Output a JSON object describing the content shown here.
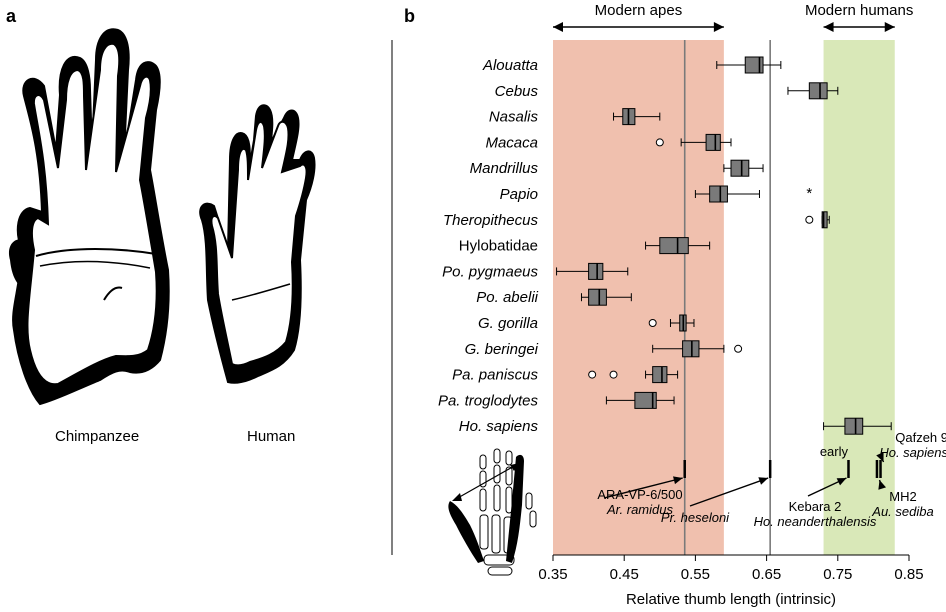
{
  "panel_a": {
    "label": "a",
    "left_caption": "Chimpanzee",
    "right_caption": "Human"
  },
  "chart_data": {
    "type": "boxplot",
    "panel_label": "b",
    "xlabel": "Relative thumb length (intrinsic)",
    "xlim": [
      0.35,
      0.85
    ],
    "xticks": [
      0.35,
      0.45,
      0.55,
      0.65,
      0.75,
      0.85
    ],
    "xtick_labels": [
      "0.35",
      "0.45",
      "0.55",
      "0.65",
      "0.75",
      "0.85"
    ],
    "grid": false,
    "bands": [
      {
        "label": "Modern apes",
        "from": 0.35,
        "to": 0.59,
        "color": "#f0c0ae"
      },
      {
        "label": "Modern humans",
        "from": 0.73,
        "to": 0.83,
        "color": "#d9e8b8"
      }
    ],
    "series": [
      {
        "label": "Alouatta",
        "italic": true,
        "whisker_low": 0.58,
        "q1": 0.62,
        "median": 0.64,
        "q3": 0.645,
        "whisker_high": 0.67,
        "outliers": []
      },
      {
        "label": "Cebus",
        "italic": true,
        "whisker_low": 0.68,
        "q1": 0.71,
        "median": 0.725,
        "q3": 0.735,
        "whisker_high": 0.75,
        "outliers": []
      },
      {
        "label": "Nasalis",
        "italic": true,
        "whisker_low": 0.435,
        "q1": 0.448,
        "median": 0.456,
        "q3": 0.465,
        "whisker_high": 0.5,
        "outliers": []
      },
      {
        "label": "Macaca",
        "italic": true,
        "whisker_low": 0.53,
        "q1": 0.565,
        "median": 0.578,
        "q3": 0.585,
        "whisker_high": 0.6,
        "outliers": [
          0.5
        ]
      },
      {
        "label": "Mandrillus",
        "italic": true,
        "whisker_low": 0.59,
        "q1": 0.6,
        "median": 0.615,
        "q3": 0.625,
        "whisker_high": 0.645,
        "outliers": []
      },
      {
        "label": "Papio",
        "italic": true,
        "whisker_low": 0.55,
        "q1": 0.57,
        "median": 0.585,
        "q3": 0.595,
        "whisker_high": 0.64,
        "outliers": []
      },
      {
        "label": "Theropithecus",
        "italic": true,
        "whisker_low": 0.728,
        "q1": 0.728,
        "median": 0.73,
        "q3": 0.735,
        "whisker_high": 0.738,
        "outliers": [
          0.71
        ]
      },
      {
        "label": "Hylobatidae",
        "italic": false,
        "whisker_low": 0.48,
        "q1": 0.5,
        "median": 0.525,
        "q3": 0.54,
        "whisker_high": 0.57,
        "outliers": []
      },
      {
        "label": "Po. pygmaeus",
        "italic": true,
        "whisker_low": 0.355,
        "q1": 0.4,
        "median": 0.412,
        "q3": 0.42,
        "whisker_high": 0.455,
        "outliers": []
      },
      {
        "label": "Po. abelii",
        "italic": true,
        "whisker_low": 0.39,
        "q1": 0.4,
        "median": 0.415,
        "q3": 0.425,
        "whisker_high": 0.46,
        "outliers": []
      },
      {
        "label": "G. gorilla",
        "italic": true,
        "whisker_low": 0.515,
        "q1": 0.528,
        "median": 0.533,
        "q3": 0.537,
        "whisker_high": 0.548,
        "outliers": [
          0.49
        ]
      },
      {
        "label": "G. beringei",
        "italic": true,
        "whisker_low": 0.49,
        "q1": 0.532,
        "median": 0.545,
        "q3": 0.555,
        "whisker_high": 0.59,
        "outliers": [
          0.61
        ]
      },
      {
        "label": "Pa. paniscus",
        "italic": true,
        "whisker_low": 0.48,
        "q1": 0.49,
        "median": 0.503,
        "q3": 0.51,
        "whisker_high": 0.525,
        "outliers": [
          0.405,
          0.435
        ]
      },
      {
        "label": "Pa. troglodytes",
        "italic": true,
        "whisker_low": 0.425,
        "q1": 0.465,
        "median": 0.49,
        "q3": 0.495,
        "whisker_high": 0.52,
        "outliers": []
      },
      {
        "label": "Ho. sapiens",
        "italic": true,
        "whisker_low": 0.73,
        "q1": 0.76,
        "median": 0.775,
        "q3": 0.785,
        "whisker_high": 0.825,
        "outliers": []
      }
    ],
    "star_marker": {
      "text": "*",
      "x": 0.71,
      "row": "Papio"
    },
    "reference_lines": [
      {
        "x": 0.535,
        "color": "#7a7a7a"
      },
      {
        "x": 0.655,
        "color": "#7a7a7a"
      }
    ],
    "fossil_marks": [
      {
        "x": 0.535
      },
      {
        "x": 0.655
      },
      {
        "x": 0.765
      },
      {
        "x": 0.805
      },
      {
        "x": 0.81
      }
    ],
    "fossil_labels": [
      {
        "lines": [
          "ARA-VP-6/500",
          "Ar. ramidus"
        ],
        "italic": [
          false,
          true
        ],
        "color": "#000000"
      },
      {
        "lines": [
          "Pr. heseloni"
        ],
        "italic": [
          true
        ],
        "color": "#666666"
      },
      {
        "lines": [
          "Kebara 2",
          "Ho. neanderthalensis"
        ],
        "italic": [
          false,
          true
        ],
        "color": "#000000"
      },
      {
        "lines": [
          "early",
          "Qafzeh 9",
          "Ho. sapiens"
        ],
        "italic": [
          false,
          false,
          true
        ],
        "color": "#000000"
      },
      {
        "lines": [
          "MH2",
          "Au. sediba"
        ],
        "italic": [
          false,
          true
        ],
        "color": "#000000"
      }
    ]
  }
}
